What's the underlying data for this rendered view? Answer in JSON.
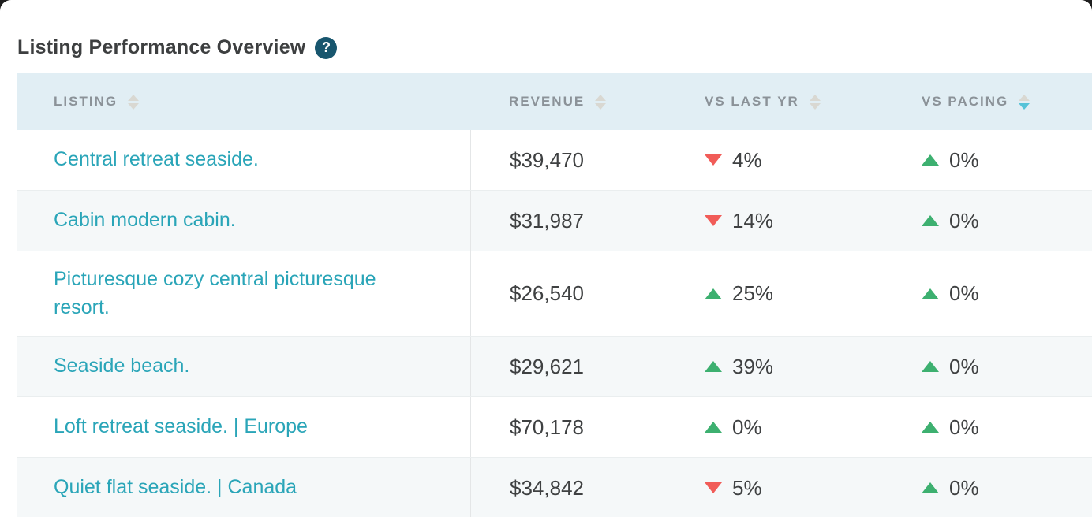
{
  "page": {
    "title": "Listing Performance Overview",
    "help_icon_glyph": "?"
  },
  "table": {
    "columns": [
      {
        "key": "listing",
        "label": "LISTING",
        "sort": "none"
      },
      {
        "key": "revenue",
        "label": "REVENUE",
        "sort": "none"
      },
      {
        "key": "vs_last_yr",
        "label": "VS LAST YR",
        "sort": "none"
      },
      {
        "key": "vs_pacing",
        "label": "VS PACING",
        "sort": "desc"
      }
    ],
    "rows": [
      {
        "listing": "Central retreat seaside.",
        "revenue": "$39,470",
        "vs_last_yr": {
          "direction": "down",
          "value": "4%"
        },
        "vs_pacing": {
          "direction": "up",
          "value": "0%"
        }
      },
      {
        "listing": "Cabin modern cabin.",
        "revenue": "$31,987",
        "vs_last_yr": {
          "direction": "down",
          "value": "14%"
        },
        "vs_pacing": {
          "direction": "up",
          "value": "0%"
        }
      },
      {
        "listing": "Picturesque cozy central picturesque resort.",
        "revenue": "$26,540",
        "vs_last_yr": {
          "direction": "up",
          "value": "25%"
        },
        "vs_pacing": {
          "direction": "up",
          "value": "0%"
        }
      },
      {
        "listing": "Seaside beach.",
        "revenue": "$29,621",
        "vs_last_yr": {
          "direction": "up",
          "value": "39%"
        },
        "vs_pacing": {
          "direction": "up",
          "value": "0%"
        }
      },
      {
        "listing": "Loft retreat seaside. | Europe",
        "revenue": "$70,178",
        "vs_last_yr": {
          "direction": "up",
          "value": "0%"
        },
        "vs_pacing": {
          "direction": "up",
          "value": "0%"
        }
      },
      {
        "listing": "Quiet flat seaside. | Canada",
        "revenue": "$34,842",
        "vs_last_yr": {
          "direction": "down",
          "value": "5%"
        },
        "vs_pacing": {
          "direction": "up",
          "value": "0%"
        }
      }
    ]
  },
  "colors": {
    "header_bg": "#e1eef4",
    "alt_row_bg": "#f5f8f9",
    "listing_link": "#2aa5b8",
    "value_text": "#3f4142",
    "header_text": "#8b9298",
    "up_arrow": "#3db070",
    "down_arrow": "#f15c58",
    "sort_inactive": "#d9d8d2",
    "sort_active": "#56c3d8",
    "help_icon_bg": "#18566e"
  }
}
